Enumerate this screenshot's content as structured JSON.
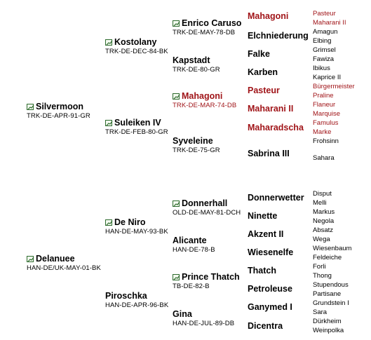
{
  "generation1": [
    {
      "name": "Silvermoon",
      "code": "TRK-DE-APR-91-GR",
      "icon": "chart-icon",
      "red": false
    },
    {
      "name": "Delanuee",
      "code": "HAN-DE/UK-MAY-01-BK",
      "icon": "chart-icon",
      "red": false
    }
  ],
  "generation2": [
    {
      "name": "Kostolany",
      "code": "TRK-DE-DEC-84-BK",
      "icon": true,
      "red": false
    },
    {
      "name": "Suleiken IV",
      "code": "TRK-DE-FEB-80-GR",
      "icon": true,
      "red": false
    },
    {
      "name": "De Niro",
      "code": "HAN-DE-MAY-93-BK",
      "icon": true,
      "red": false
    },
    {
      "name": "Piroschka",
      "code": "HAN-DE-APR-96-BK",
      "icon": false,
      "red": false
    }
  ],
  "generation3": [
    {
      "name": "Enrico Caruso",
      "code": "TRK-DE-MAY-78-DB",
      "icon": true,
      "red": false
    },
    {
      "name": "Kapstadt",
      "code": "TRK-DE-80-GR",
      "icon": false,
      "red": false
    },
    {
      "name": "Mahagoni",
      "code": "TRK-DE-MAR-74-DB",
      "icon": true,
      "red": true
    },
    {
      "name": "Syveleine",
      "code": "TRK-DE-75-GR",
      "icon": false,
      "red": false
    },
    {
      "name": "Donnerhall",
      "code": "OLD-DE-MAY-81-DCH",
      "icon": true,
      "red": false
    },
    {
      "name": "Alicante",
      "code": "HAN-DE-78-B",
      "icon": false,
      "red": false
    },
    {
      "name": "Prince Thatch",
      "code": "TB-DE-82-B",
      "icon": true,
      "red": false
    },
    {
      "name": "Gina",
      "code": "HAN-DE-JUL-89-DB",
      "icon": false,
      "red": false
    }
  ],
  "generation4": [
    {
      "name": "Mahagoni",
      "red": true
    },
    {
      "name": "Elchniederung",
      "red": false
    },
    {
      "name": "Falke",
      "red": false
    },
    {
      "name": "Karben",
      "red": false
    },
    {
      "name": "Pasteur",
      "red": true
    },
    {
      "name": "Maharani II",
      "red": true
    },
    {
      "name": "Maharadscha",
      "red": true
    },
    {
      "name": "Sabrina III",
      "red": false
    },
    {
      "name": "Donnerwetter",
      "red": false
    },
    {
      "name": "Ninette",
      "red": false
    },
    {
      "name": "Akzent II",
      "red": false
    },
    {
      "name": "Wiesenelfe",
      "red": false
    },
    {
      "name": "Thatch",
      "red": false
    },
    {
      "name": "Petroleuse",
      "red": false
    },
    {
      "name": "Ganymed I",
      "red": false
    },
    {
      "name": "Dicentra",
      "red": false
    }
  ],
  "generation5": [
    {
      "name": "Pasteur",
      "red": true
    },
    {
      "name": "Maharani II",
      "red": true
    },
    {
      "name": "Amagun",
      "red": false
    },
    {
      "name": "Elbing",
      "red": false
    },
    {
      "name": "Grimsel",
      "red": false
    },
    {
      "name": "Fawiza",
      "red": false
    },
    {
      "name": "Ibikus",
      "red": false
    },
    {
      "name": "Kaprice II",
      "red": false
    },
    {
      "name": "Bürgermeister",
      "red": true
    },
    {
      "name": "Praline",
      "red": true
    },
    {
      "name": "Flaneur",
      "red": true
    },
    {
      "name": "Marquise",
      "red": true
    },
    {
      "name": "Famulus",
      "red": true
    },
    {
      "name": "Marke",
      "red": true
    },
    {
      "name": "Frohsinn",
      "red": false
    },
    {
      "name": "Sahara",
      "red": false
    },
    {
      "name": "Disput",
      "red": false
    },
    {
      "name": "Melli",
      "red": false
    },
    {
      "name": "Markus",
      "red": false
    },
    {
      "name": "Negola",
      "red": false
    },
    {
      "name": "Absatz",
      "red": false
    },
    {
      "name": "Wega",
      "red": false
    },
    {
      "name": "Wiesenbaum",
      "red": false
    },
    {
      "name": "Feldeiche",
      "red": false
    },
    {
      "name": "Forli",
      "red": false
    },
    {
      "name": "Thong",
      "red": false
    },
    {
      "name": "Stupendous",
      "red": false
    },
    {
      "name": "Partisane",
      "red": false
    },
    {
      "name": "Grundstein I",
      "red": false
    },
    {
      "name": "Sara",
      "red": false
    },
    {
      "name": "Dürkheim",
      "red": false
    },
    {
      "name": "Weinpolka",
      "red": false
    }
  ],
  "colors": {
    "red": "#a01418",
    "text": "#000000",
    "icon_border": "#2e6b2e"
  }
}
